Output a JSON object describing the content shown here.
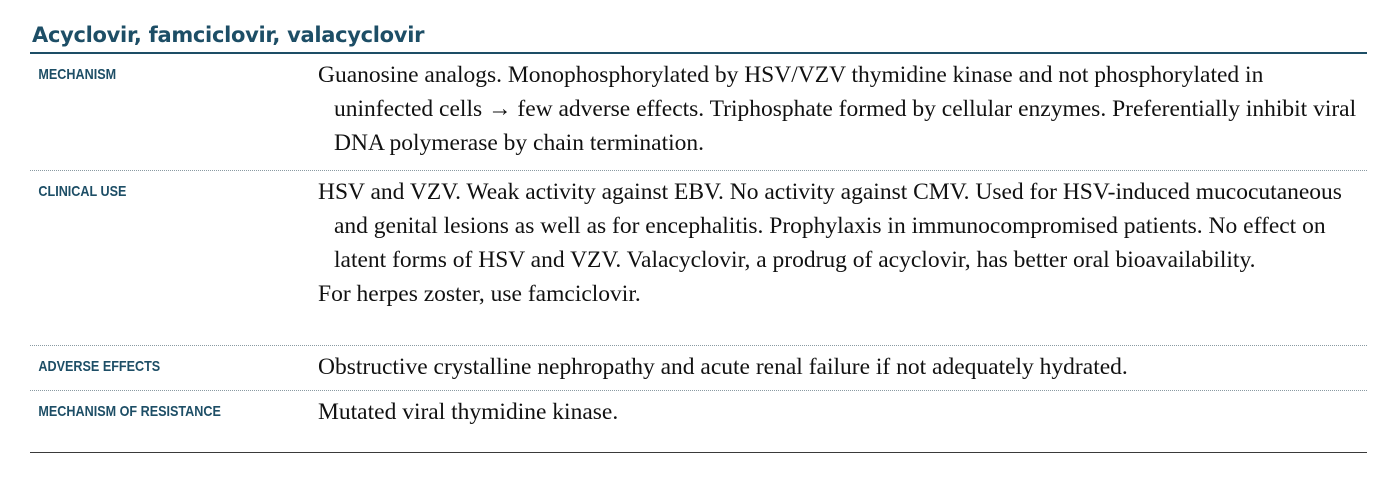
{
  "drug": {
    "title": "Acyclovir, famciclovir, valacyclovir"
  },
  "rows": [
    {
      "label": "MECHANISM",
      "paragraphs": [
        "Guanosine analogs. Monophosphorylated by HSV/VZV thymidine kinase and not phosphorylated in uninfected cells → few adverse effects. Triphosphate formed by cellular enzymes. Preferentially inhibit viral DNA polymerase by chain termination."
      ]
    },
    {
      "label": "CLINICAL USE",
      "paragraphs": [
        "HSV and VZV. Weak activity against EBV. No activity against CMV. Used for HSV-induced mucocutaneous and genital lesions as well as for encephalitis. Prophylaxis in immunocompromised patients. No effect on latent forms of HSV and VZV. Valacyclovir, a prodrug of acyclovir, has better oral bioavailability.",
        "For herpes zoster, use famciclovir."
      ]
    },
    {
      "label": "ADVERSE EFFECTS",
      "paragraphs": [
        "Obstructive crystalline nephropathy and acute renal failure if not adequately hydrated."
      ]
    },
    {
      "label": "MECHANISM OF RESISTANCE",
      "paragraphs": [
        "Mutated viral thymidine kinase."
      ]
    }
  ]
}
